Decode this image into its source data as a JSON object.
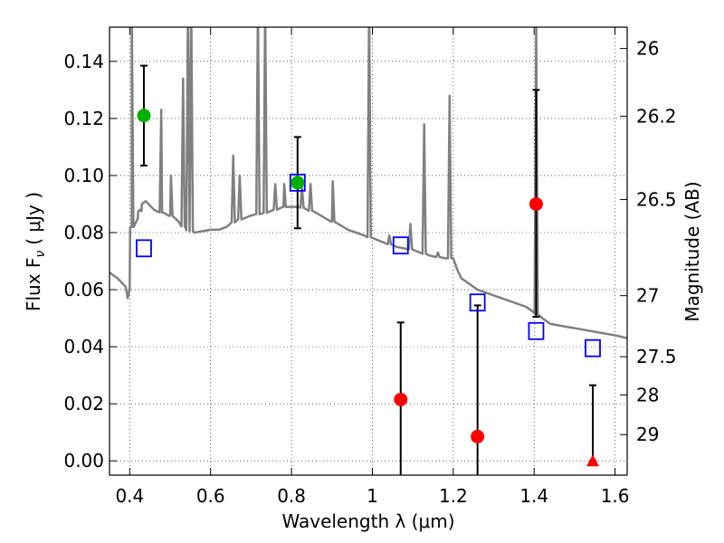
{
  "chart_data": {
    "type": "scatter",
    "xlabel": "Wavelength  λ (μm)",
    "ylabel_left": "Flux  F",
    "ylabel_left_sub": "ν",
    "ylabel_left_unit": "( μJy )",
    "ylabel_right": "Magnitude (AB)",
    "xlim": [
      0.35,
      1.63
    ],
    "ylim": [
      -0.005,
      0.152
    ],
    "grid": true,
    "x_ticks": [
      0.4,
      0.6,
      0.8,
      1.0,
      1.2,
      1.4,
      1.6
    ],
    "x_tick_labels": [
      "0.4",
      "0.6",
      "0.8",
      "1",
      "1.2",
      "1.4",
      "1.6"
    ],
    "y_ticks": [
      0.0,
      0.02,
      0.04,
      0.06,
      0.08,
      0.1,
      0.12,
      0.14
    ],
    "y_tick_labels": [
      "0.00",
      "0.02",
      "0.04",
      "0.06",
      "0.08",
      "0.10",
      "0.12",
      "0.14"
    ],
    "right_ticks": [
      {
        "label": "26",
        "flux": 0.1445
      },
      {
        "label": "26.2",
        "flux": 0.1208
      },
      {
        "label": "26.5",
        "flux": 0.0916
      },
      {
        "label": "27",
        "flux": 0.0579
      },
      {
        "label": "27.5",
        "flux": 0.0365
      },
      {
        "label": "28",
        "flux": 0.0231
      },
      {
        "label": "29",
        "flux": 0.0092
      }
    ],
    "series": [
      {
        "kind": "spectrum",
        "color": "#808080",
        "points": [
          [
            0.35,
            0.066
          ],
          [
            0.37,
            0.064
          ],
          [
            0.39,
            0.061
          ],
          [
            0.395,
            0.057
          ],
          [
            0.4,
            0.06
          ],
          [
            0.405,
            0.082
          ],
          [
            0.41,
            0.082
          ],
          [
            0.42,
            0.085
          ],
          [
            0.43,
            0.09
          ],
          [
            0.44,
            0.091
          ],
          [
            0.46,
            0.088
          ],
          [
            0.48,
            0.087
          ],
          [
            0.5,
            0.086
          ],
          [
            0.52,
            0.084
          ],
          [
            0.54,
            0.081
          ],
          [
            0.56,
            0.08
          ],
          [
            0.6,
            0.081
          ],
          [
            0.62,
            0.081
          ],
          [
            0.64,
            0.082
          ],
          [
            0.66,
            0.084
          ],
          [
            0.7,
            0.086
          ],
          [
            0.74,
            0.087
          ],
          [
            0.78,
            0.089
          ],
          [
            0.82,
            0.089
          ],
          [
            0.86,
            0.087
          ],
          [
            0.9,
            0.084
          ],
          [
            0.94,
            0.081
          ],
          [
            0.98,
            0.079
          ],
          [
            1.02,
            0.077
          ],
          [
            1.06,
            0.075
          ],
          [
            1.1,
            0.074
          ],
          [
            1.14,
            0.072
          ],
          [
            1.18,
            0.071
          ],
          [
            1.2,
            0.071
          ],
          [
            1.21,
            0.067
          ],
          [
            1.22,
            0.064
          ],
          [
            1.26,
            0.06
          ],
          [
            1.3,
            0.058
          ],
          [
            1.34,
            0.056
          ],
          [
            1.38,
            0.054
          ],
          [
            1.4,
            0.052
          ],
          [
            1.42,
            0.05
          ],
          [
            1.44,
            0.048
          ],
          [
            1.48,
            0.047
          ],
          [
            1.52,
            0.046
          ],
          [
            1.56,
            0.045
          ],
          [
            1.6,
            0.044
          ],
          [
            1.63,
            0.043
          ]
        ],
        "peaks": [
          [
            0.405,
            0.16
          ],
          [
            0.425,
            0.088
          ],
          [
            0.478,
            0.123
          ],
          [
            0.502,
            0.1
          ],
          [
            0.532,
            0.134
          ],
          [
            0.544,
            0.16
          ],
          [
            0.552,
            0.16
          ],
          [
            0.656,
            0.107
          ],
          [
            0.672,
            0.1
          ],
          [
            0.717,
            0.16
          ],
          [
            0.735,
            0.16
          ],
          [
            0.76,
            0.097
          ],
          [
            0.782,
            0.097
          ],
          [
            0.826,
            0.096
          ],
          [
            0.847,
            0.097
          ],
          [
            0.902,
            0.098
          ],
          [
            0.992,
            0.16
          ],
          [
            1.042,
            0.079
          ],
          [
            1.094,
            0.083
          ],
          [
            1.128,
            0.118
          ],
          [
            1.162,
            0.073
          ],
          [
            1.191,
            0.128
          ],
          [
            1.405,
            0.152
          ]
        ]
      },
      {
        "kind": "model_photometry",
        "marker": "open-square",
        "color": "#0000ff",
        "points": [
          [
            0.435,
            0.0745
          ],
          [
            0.815,
            0.0975
          ],
          [
            1.07,
            0.0755
          ],
          [
            1.26,
            0.0555
          ],
          [
            1.405,
            0.0455
          ],
          [
            1.545,
            0.0395
          ]
        ]
      },
      {
        "kind": "detections",
        "marker": "circle",
        "color": "#00b000",
        "points": [
          {
            "x": 0.435,
            "y": 0.121,
            "lo": 0.1035,
            "hi": 0.1385
          },
          {
            "x": 0.815,
            "y": 0.0975,
            "lo": 0.0815,
            "hi": 0.1135
          }
        ]
      },
      {
        "kind": "non_detections",
        "marker": "circle",
        "color": "#ff0000",
        "points": [
          {
            "x": 1.07,
            "y": 0.0215,
            "lo": -0.01,
            "hi": 0.0485
          },
          {
            "x": 1.26,
            "y": 0.0085,
            "lo": -0.01,
            "hi": 0.0545
          },
          {
            "x": 1.405,
            "y": 0.09,
            "lo": 0.0505,
            "hi": 0.13
          }
        ]
      },
      {
        "kind": "upper_limit",
        "marker": "triangle",
        "color": "#ff0000",
        "points": [
          {
            "x": 1.545,
            "y": 0.0,
            "lo": 0.0,
            "hi": 0.0265
          }
        ]
      }
    ]
  }
}
